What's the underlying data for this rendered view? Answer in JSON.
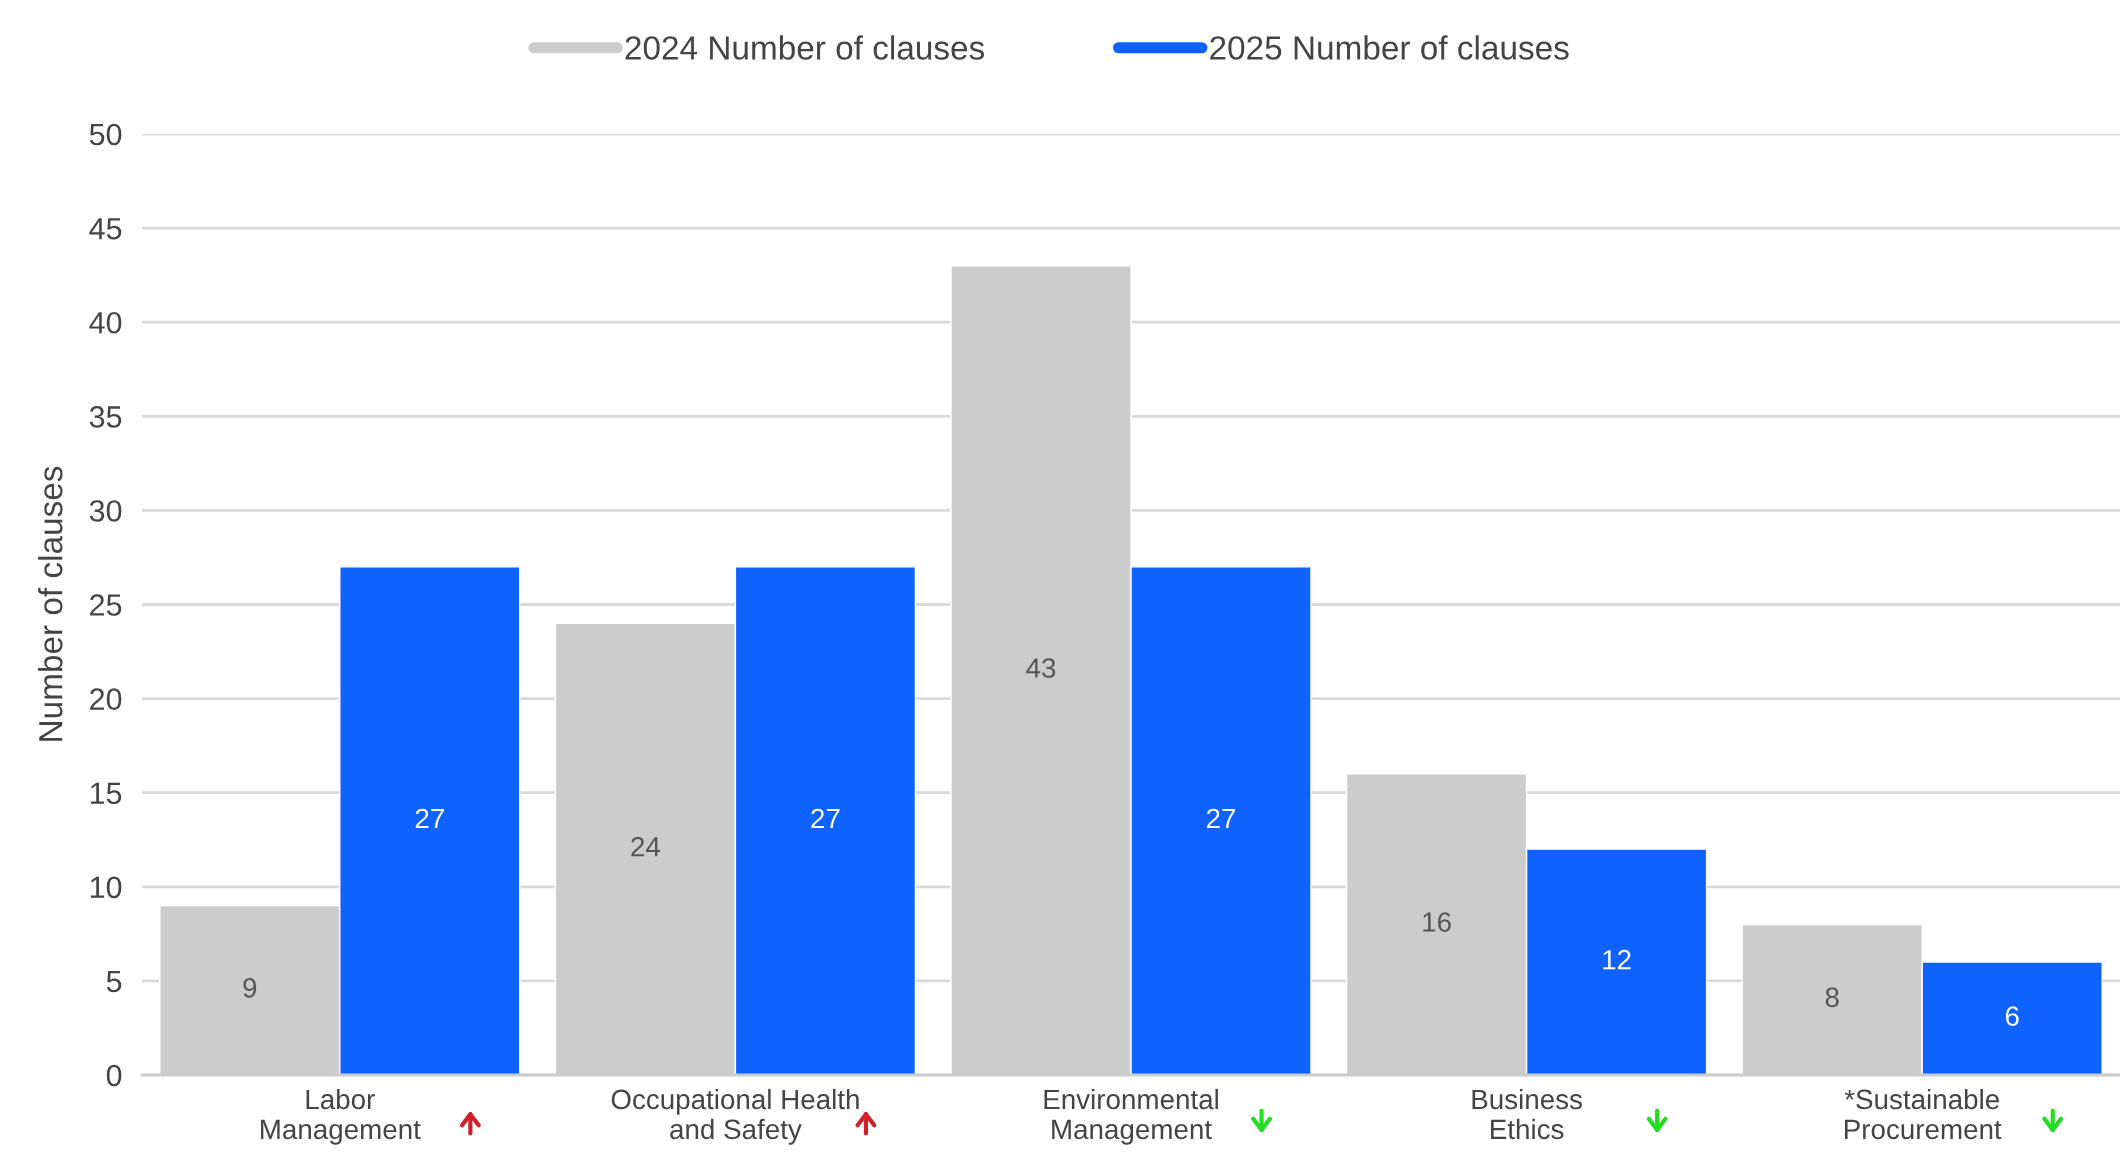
{
  "chart_data": {
    "type": "bar",
    "ylabel": "Number of clauses",
    "categories": [
      "Labor\nManagement",
      "Occupational Health\nand Safety",
      "Environmental\nManagement",
      "Business\nEthics",
      "*Sustainable\nProcurement"
    ],
    "series": [
      {
        "name": "2024 Number of clauses",
        "color": "#cccccc",
        "values": [
          9,
          24,
          43,
          16,
          8
        ]
      },
      {
        "name": "2025 Number of clauses",
        "color": "#0f62fe",
        "values": [
          27,
          27,
          27,
          12,
          6
        ]
      }
    ],
    "ylim": [
      0,
      50
    ],
    "yticks": [
      0,
      5,
      10,
      15,
      20,
      25,
      30,
      35,
      40,
      45,
      50
    ],
    "grid": "y",
    "legend": "top",
    "data_labels": true
  }
}
